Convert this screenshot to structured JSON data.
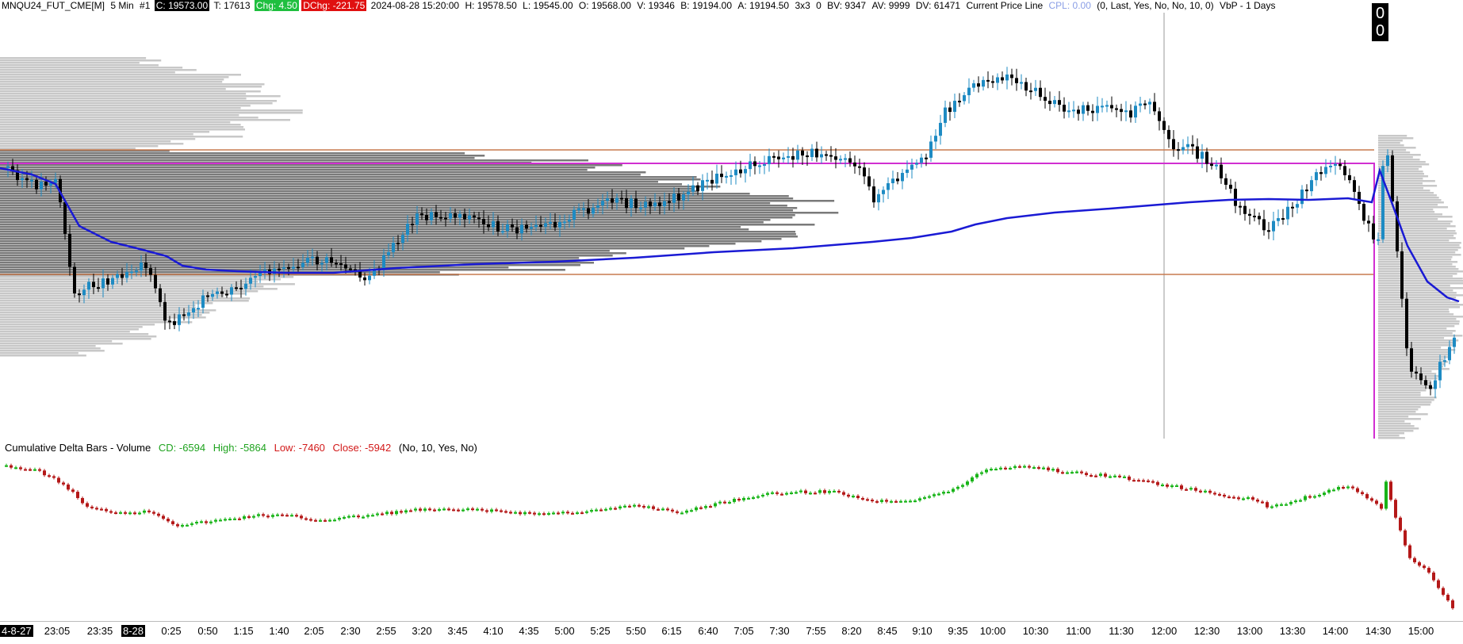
{
  "header": {
    "symbol": "MNQU24_FUT_CME[M]",
    "interval": "5 Min",
    "chart_num": "#1",
    "close": "C: 19573.00",
    "ticks": "T: 17613",
    "chg": "Chg: 4.50",
    "dchg": "DChg: -221.75",
    "datetime": "2024-08-28 15:20:00",
    "high": "H: 19578.50",
    "low": "L: 19545.00",
    "open": "O: 19568.00",
    "volume": "V: 19346",
    "bid": "B: 19194.00",
    "ask": "A: 19194.50",
    "bar_size": "3x3",
    "zero": "0",
    "bv": "BV: 9347",
    "av": "AV: 9999",
    "dv": "DV: 61471",
    "cpl_title": "Current Price Line",
    "cpl_value": "CPL: 0.00",
    "cpl_params": "(0, Last, Yes, No, No, 10, 0)",
    "vbp": "VbP - 1 Days"
  },
  "price_box": {
    "line1": "0",
    "line2": "0"
  },
  "study": {
    "name": "Cumulative Delta Bars - Volume",
    "cd": "CD: -6594",
    "high": "High: -5864",
    "low": "Low: -7460",
    "close": "Close: -5942",
    "params": "(No, 10, Yes, No)"
  },
  "time_axis": {
    "labels": [
      {
        "t": "4-8-27",
        "dark": true
      },
      {
        "t": "23:05"
      },
      {
        "t": "23:35"
      },
      {
        "t": "8-28",
        "dark": true
      },
      {
        "t": "0:25"
      },
      {
        "t": "0:50"
      },
      {
        "t": "1:15"
      },
      {
        "t": "1:40"
      },
      {
        "t": "2:05"
      },
      {
        "t": "2:30"
      },
      {
        "t": "2:55"
      },
      {
        "t": "3:20"
      },
      {
        "t": "3:45"
      },
      {
        "t": "4:10"
      },
      {
        "t": "4:35"
      },
      {
        "t": "5:00"
      },
      {
        "t": "5:25"
      },
      {
        "t": "5:50"
      },
      {
        "t": "6:15"
      },
      {
        "t": "6:40"
      },
      {
        "t": "7:05"
      },
      {
        "t": "7:30"
      },
      {
        "t": "7:55"
      },
      {
        "t": "8:20"
      },
      {
        "t": "8:45"
      },
      {
        "t": "9:10"
      },
      {
        "t": "9:35"
      },
      {
        "t": "10:00"
      },
      {
        "t": "10:30"
      },
      {
        "t": "11:00"
      },
      {
        "t": "11:30"
      },
      {
        "t": "12:00"
      },
      {
        "t": "12:30"
      },
      {
        "t": "13:00"
      },
      {
        "t": "13:30"
      },
      {
        "t": "14:00"
      },
      {
        "t": "14:30"
      },
      {
        "t": "15:00"
      }
    ]
  },
  "colors": {
    "bull_candle": "#1e8bc3",
    "bear_candle": "#000000",
    "vwap": "#1a1ad4",
    "vah_val": "#c77a4e",
    "poc": "#d12fd1",
    "profile_light": "#c8c8c8",
    "profile_dark": "#7a7a7a",
    "delta_up": "#18b418",
    "delta_down": "#b41818"
  }
}
